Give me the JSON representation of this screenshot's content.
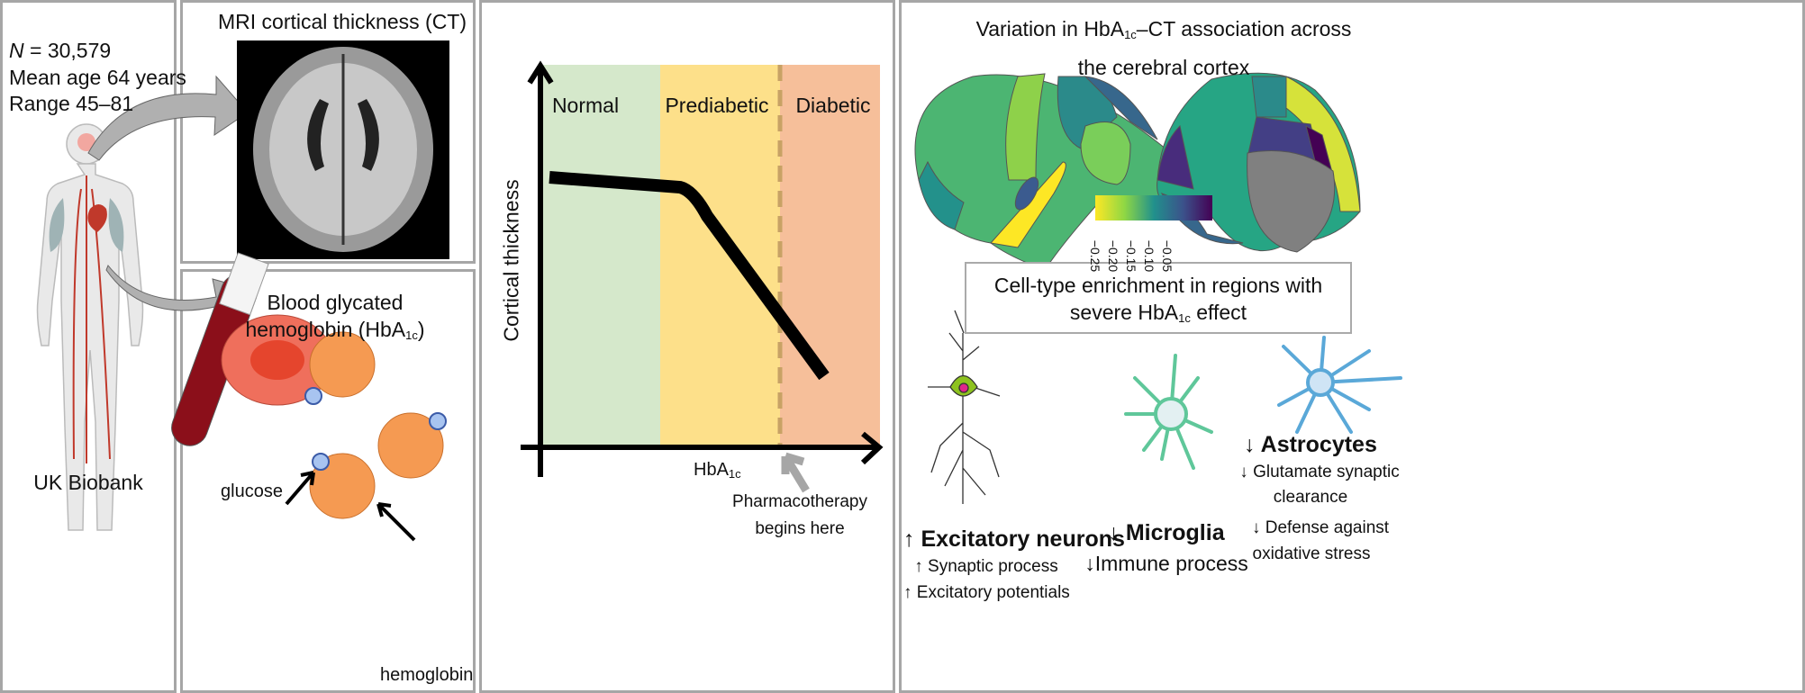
{
  "cohort": {
    "n_label": "N",
    "n_value": "= 30,579",
    "mean_age": "Mean age 64 years",
    "range": "Range 45–81",
    "source": "UK Biobank"
  },
  "mri": {
    "title": "MRI cortical thickness (CT)"
  },
  "blood": {
    "title_line1": "Blood glycated",
    "title_line2": "hemoglobin (HbA",
    "title_sub": "1c",
    "title_end": ")",
    "glucose_label": "glucose",
    "hemoglobin_label": "hemoglobin"
  },
  "schematic": {
    "zones": [
      {
        "label": "Normal",
        "color": "#d5e8cb"
      },
      {
        "label": "Prediabetic",
        "color": "#fde08a"
      },
      {
        "label": "Diabetic",
        "color": "#f6bf9a"
      }
    ],
    "ylabel": "Cortical thickness",
    "xlabel": "HbA",
    "xlabel_sub": "1c",
    "annotation_line1": "Pharmacotherapy",
    "annotation_line2": "begins here"
  },
  "cortex": {
    "title_pre": "Variation in HbA",
    "title_sub": "1c",
    "title_post": "–CT association across",
    "title_line2": "the cerebral cortex",
    "colorbar": {
      "colormap": "viridis (reversed)",
      "ticks": [
        "−0.25",
        "−0.20",
        "−0.15",
        "−0.10",
        "−0.05"
      ]
    }
  },
  "enrichment": {
    "title_line1": "Cell-type enrichment in regions with",
    "title_line2_pre": "severe HbA",
    "title_line2_sub": "1c",
    "title_line2_post": " effect",
    "cells": [
      {
        "name": "↑ Excitatory neurons",
        "effects": [
          "↑ Synaptic process",
          "↑ Excitatory potentials"
        ]
      },
      {
        "name": "↓ Microglia",
        "effects": [
          "↓Immune process"
        ]
      },
      {
        "name": "↓ Astrocytes",
        "effects": [
          "↓ Glutamate synaptic",
          "clearance",
          "↓ Defense against",
          "oxidative stress"
        ]
      }
    ]
  }
}
